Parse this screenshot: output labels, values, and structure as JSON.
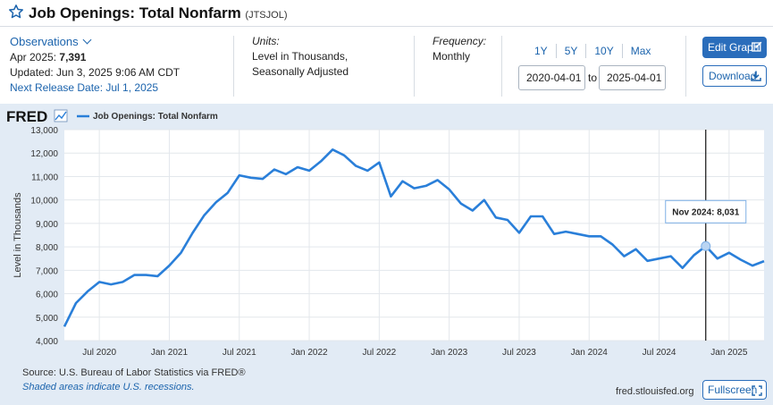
{
  "header": {
    "title": "Job Openings: Total Nonfarm",
    "series_id": "(JTSJOL)",
    "star_icon": "star-outline-icon"
  },
  "observations": {
    "label": "Observations",
    "latest_prefix": "Apr 2025:",
    "latest_value": "7,391",
    "updated": "Updated: Jun 3, 2025 9:06 AM CDT",
    "next_release": "Next Release Date: Jul 1, 2025"
  },
  "units": {
    "label": "Units:",
    "line1": "Level in Thousands,",
    "line2": "Seasonally Adjusted"
  },
  "frequency": {
    "label": "Frequency:",
    "value": "Monthly"
  },
  "range_buttons": [
    "1Y",
    "5Y",
    "10Y",
    "Max"
  ],
  "date_range": {
    "start": "2020-04-01",
    "to_label": "to",
    "end": "2025-04-01"
  },
  "actions": {
    "edit_graph": "Edit Graph",
    "download": "Download",
    "fullscreen": "Fullscreen"
  },
  "footer": {
    "source": "Source: U.S. Bureau of Labor Statistics via FRED®",
    "shaded": "Shaded areas indicate U.S. recessions.",
    "site": "fred.stlouisfed.org"
  },
  "logo": {
    "text": "FRED"
  },
  "colors": {
    "line": "#2a7fd9",
    "accent": "#1c64ad",
    "panel": "#e2ebf5",
    "button": "#2a6dbb"
  },
  "chart_data": {
    "type": "line",
    "ylabel": "Level in Thousands",
    "ylim": [
      4000,
      13000
    ],
    "y_ticks": [
      "4,000",
      "5,000",
      "6,000",
      "7,000",
      "8,000",
      "9,000",
      "10,000",
      "11,000",
      "12,000",
      "13,000"
    ],
    "x_tick_labels": [
      "Jul 2020",
      "Jan 2021",
      "Jul 2021",
      "Jan 2022",
      "Jul 2022",
      "Jan 2023",
      "Jul 2023",
      "Jan 2024",
      "Jul 2024",
      "Jan 2025"
    ],
    "grid": true,
    "legend": "top-left",
    "series": [
      {
        "name": "Job Openings: Total Nonfarm",
        "x": [
          "2020-04",
          "2020-05",
          "2020-06",
          "2020-07",
          "2020-08",
          "2020-09",
          "2020-10",
          "2020-11",
          "2020-12",
          "2021-01",
          "2021-02",
          "2021-03",
          "2021-04",
          "2021-05",
          "2021-06",
          "2021-07",
          "2021-08",
          "2021-09",
          "2021-10",
          "2021-11",
          "2021-12",
          "2022-01",
          "2022-02",
          "2022-03",
          "2022-04",
          "2022-05",
          "2022-06",
          "2022-07",
          "2022-08",
          "2022-09",
          "2022-10",
          "2022-11",
          "2022-12",
          "2023-01",
          "2023-02",
          "2023-03",
          "2023-04",
          "2023-05",
          "2023-06",
          "2023-07",
          "2023-08",
          "2023-09",
          "2023-10",
          "2023-11",
          "2023-12",
          "2024-01",
          "2024-02",
          "2024-03",
          "2024-04",
          "2024-05",
          "2024-06",
          "2024-07",
          "2024-08",
          "2024-09",
          "2024-10",
          "2024-11",
          "2024-12",
          "2025-01",
          "2025-02",
          "2025-03",
          "2025-04"
        ],
        "values": [
          4600,
          5600,
          6100,
          6500,
          6400,
          6500,
          6800,
          6800,
          6750,
          7200,
          7750,
          8600,
          9350,
          9900,
          10300,
          11050,
          10950,
          10900,
          11300,
          11100,
          11400,
          11250,
          11650,
          12150,
          11900,
          11450,
          11250,
          11600,
          10150,
          10800,
          10500,
          10600,
          10850,
          10450,
          9850,
          9550,
          10000,
          9250,
          9150,
          8600,
          9300,
          9300,
          8550,
          8650,
          8550,
          8450,
          8450,
          8100,
          7600,
          7900,
          7400,
          7500,
          7600,
          7100,
          7650,
          8031,
          7500,
          7750,
          7450,
          7200,
          7391
        ]
      }
    ],
    "annotation": {
      "label": "Nov 2024:",
      "value": "8,031",
      "date": "2024-11"
    }
  }
}
